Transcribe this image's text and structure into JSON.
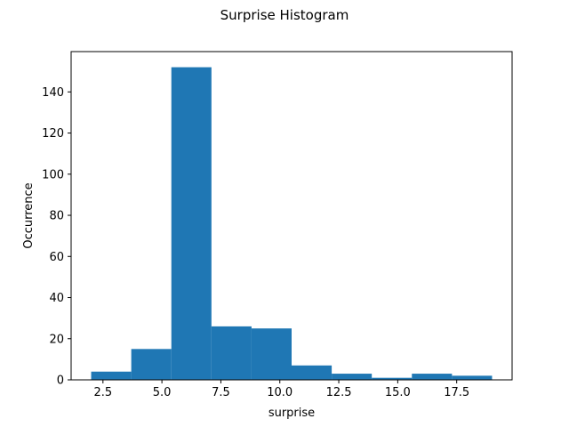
{
  "colors": {
    "bar": "#1f77b4",
    "axes": "#000000",
    "background": "#ffffff"
  },
  "chart_data": {
    "type": "bar",
    "title": "Surprise Histogram",
    "xlabel": "surprise",
    "ylabel": "Occurrence",
    "xlim": [
      1.15,
      19.85
    ],
    "ylim": [
      0,
      159.6
    ],
    "grid": false,
    "legend": "none",
    "x_ticks": [
      2.5,
      5.0,
      7.5,
      10.0,
      12.5,
      15.0,
      17.5
    ],
    "x_tick_labels": [
      "2.5",
      "5.0",
      "7.5",
      "10.0",
      "12.5",
      "15.0",
      "17.5"
    ],
    "y_ticks": [
      0,
      20,
      40,
      60,
      80,
      100,
      120,
      140
    ],
    "y_tick_labels": [
      "0",
      "20",
      "40",
      "60",
      "80",
      "100",
      "120",
      "140"
    ],
    "bins": [
      {
        "x0": 2.0,
        "x1": 3.7,
        "count": 4
      },
      {
        "x0": 3.7,
        "x1": 5.4,
        "count": 15
      },
      {
        "x0": 5.4,
        "x1": 7.1,
        "count": 152
      },
      {
        "x0": 7.1,
        "x1": 8.8,
        "count": 26
      },
      {
        "x0": 8.8,
        "x1": 10.5,
        "count": 25
      },
      {
        "x0": 10.5,
        "x1": 12.2,
        "count": 7
      },
      {
        "x0": 12.2,
        "x1": 13.9,
        "count": 3
      },
      {
        "x0": 13.9,
        "x1": 15.6,
        "count": 1
      },
      {
        "x0": 15.6,
        "x1": 17.3,
        "count": 3
      },
      {
        "x0": 17.3,
        "x1": 19.0,
        "count": 2
      }
    ]
  }
}
